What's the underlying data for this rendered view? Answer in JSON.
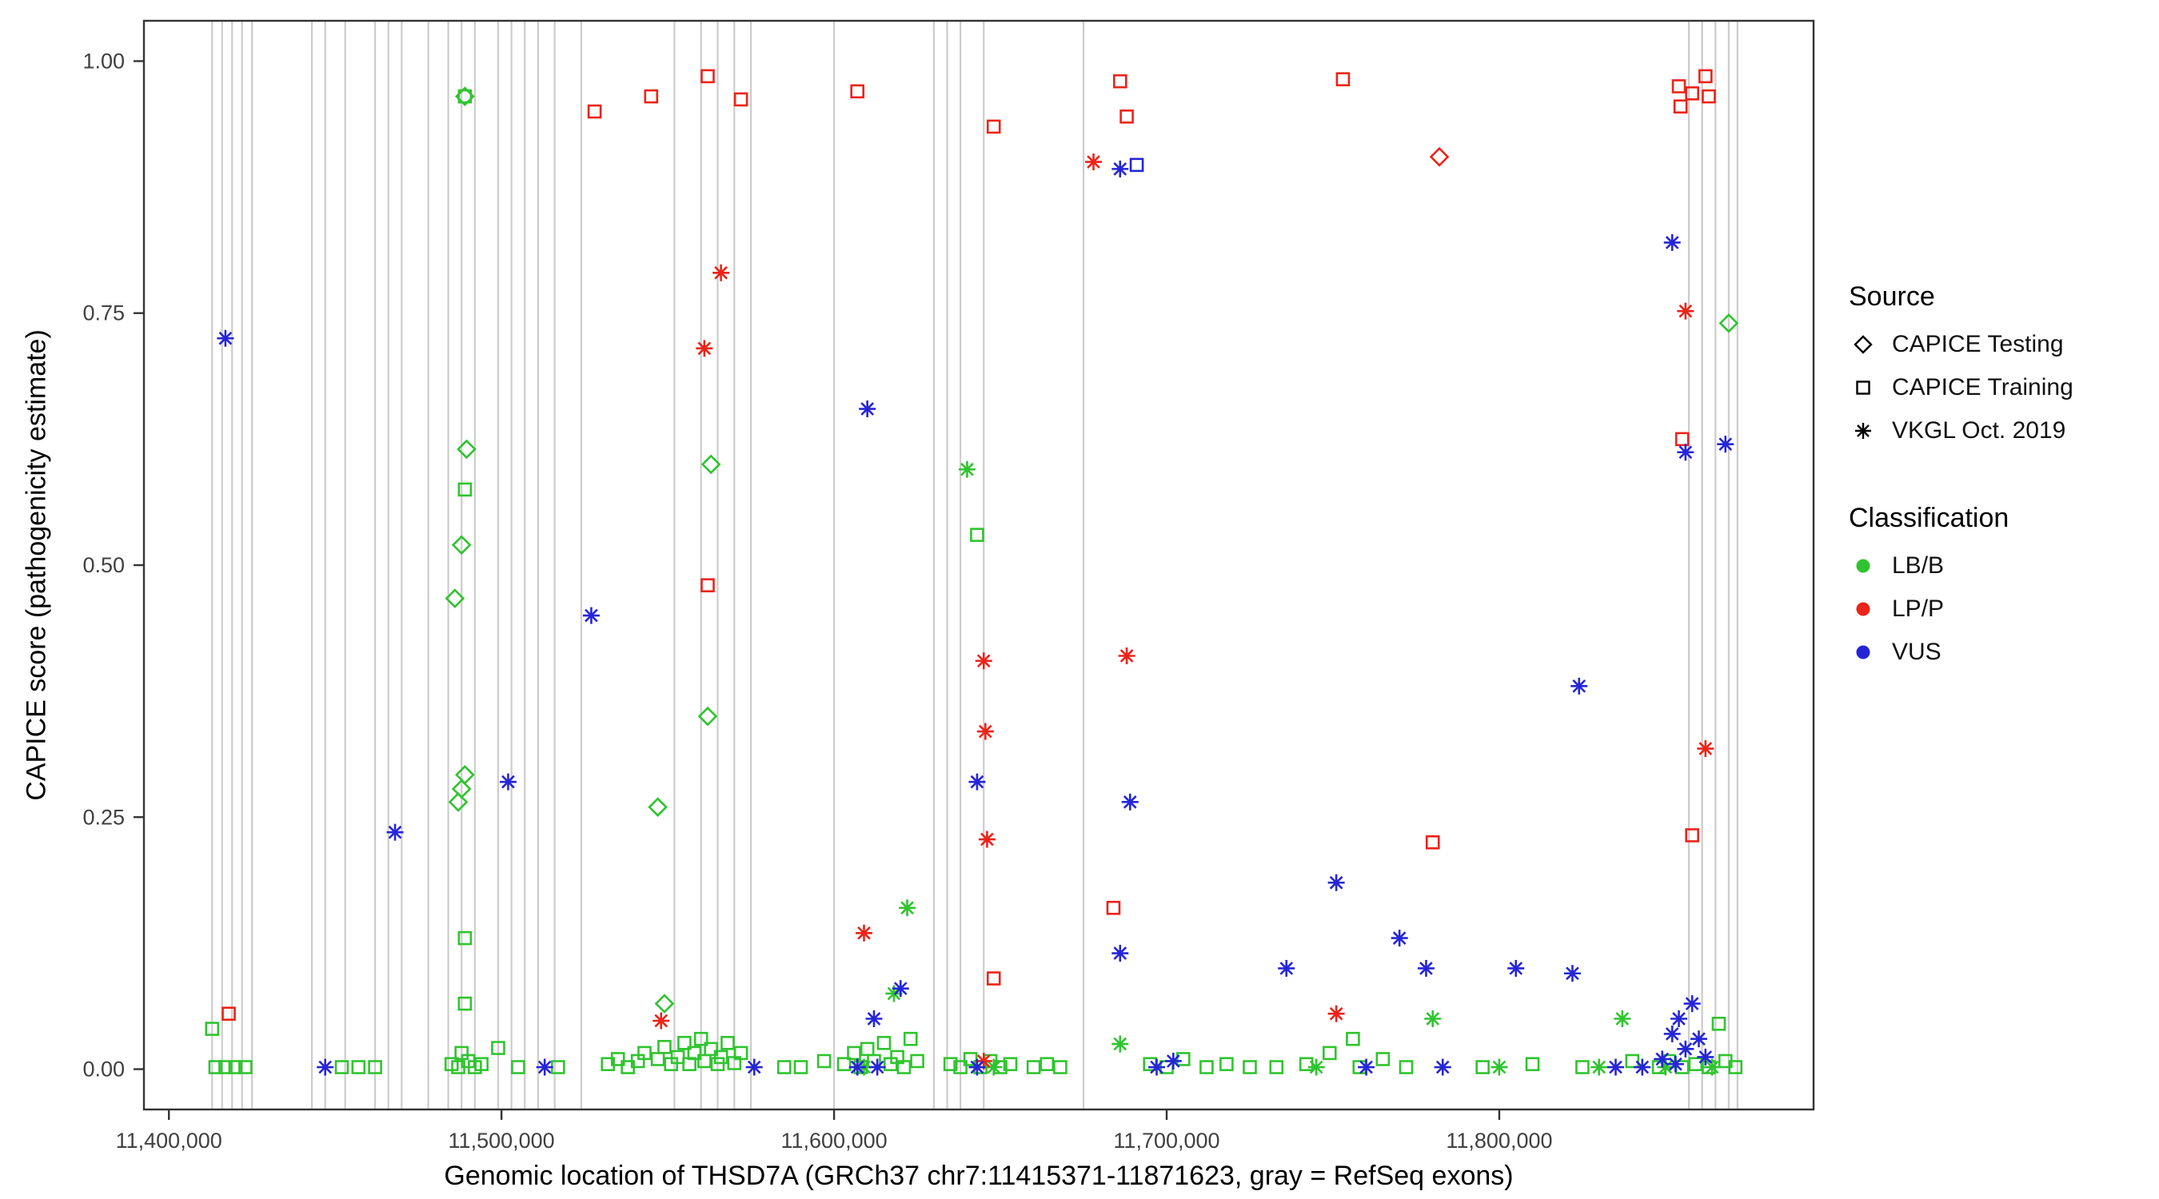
{
  "legend": {
    "source": {
      "title": "Source",
      "items": [
        {
          "label": "CAPICE Testing",
          "marker": "diamond"
        },
        {
          "label": "CAPICE Training",
          "marker": "square"
        },
        {
          "label": "VKGL Oct. 2019",
          "marker": "asterisk"
        }
      ]
    },
    "classification": {
      "title": "Classification",
      "items": [
        {
          "label": "LB/B",
          "color": "#2fc42f"
        },
        {
          "label": "LP/P",
          "color": "#ec2318"
        },
        {
          "label": "VUS",
          "color": "#2525d8"
        }
      ]
    }
  },
  "chart_data": {
    "type": "scatter",
    "title": "",
    "xlabel": "Genomic location of THSD7A (GRCh37 chr7:11415371-11871623, gray = RefSeq exons)",
    "ylabel": "CAPICE score (pathogenicity estimate)",
    "xlim": [
      11392500,
      11894500
    ],
    "ylim": [
      -0.04,
      1.04
    ],
    "x_ticks": [
      {
        "value": 11400000,
        "label": "11,400,000"
      },
      {
        "value": 11500000,
        "label": "11,500,000"
      },
      {
        "value": 11600000,
        "label": "11,600,000"
      },
      {
        "value": 11700000,
        "label": "11,700,000"
      },
      {
        "value": 11800000,
        "label": "11,800,000"
      }
    ],
    "y_ticks": [
      {
        "value": 0.0,
        "label": "0.00"
      },
      {
        "value": 0.25,
        "label": "0.25"
      },
      {
        "value": 0.5,
        "label": "0.50"
      },
      {
        "value": 0.75,
        "label": "0.75"
      },
      {
        "value": 1.0,
        "label": "1.00"
      }
    ],
    "exon_color": "#cccccc",
    "exon_positions": [
      11413000,
      11416000,
      11419000,
      11422000,
      11425000,
      11443000,
      11447000,
      11453000,
      11462000,
      11466000,
      11470000,
      11478000,
      11484000,
      11488000,
      11492000,
      11499000,
      11503000,
      11507000,
      11511000,
      11516000,
      11524000,
      11552000,
      11560000,
      11565000,
      11570000,
      11575000,
      11600000,
      11630000,
      11634000,
      11638000,
      11645000,
      11675000,
      11857000,
      11861000,
      11865000,
      11869000,
      11871623
    ],
    "series": [
      {
        "name": "CAPICE Testing · LB/B",
        "source": "CAPICE Testing",
        "classification": "LB/B",
        "marker": "diamond",
        "color": "#2fc42f",
        "points": [
          [
            11489000,
            0.965
          ],
          [
            11489500,
            0.615
          ],
          [
            11488000,
            0.52
          ],
          [
            11486000,
            0.467
          ],
          [
            11489000,
            0.292
          ],
          [
            11488000,
            0.278
          ],
          [
            11487000,
            0.265
          ],
          [
            11547000,
            0.26
          ],
          [
            11549000,
            0.065
          ],
          [
            11563000,
            0.6
          ],
          [
            11562000,
            0.35
          ],
          [
            11869000,
            0.74
          ]
        ]
      },
      {
        "name": "CAPICE Testing · LP/P",
        "source": "CAPICE Testing",
        "classification": "LP/P",
        "marker": "diamond",
        "color": "#ec2318",
        "points": [
          [
            11782000,
            0.905
          ]
        ]
      },
      {
        "name": "CAPICE Training · LB/B",
        "source": "CAPICE Training",
        "classification": "LB/B",
        "marker": "square",
        "color": "#2fc42f",
        "points": [
          [
            11489000,
            0.965
          ],
          [
            11489000,
            0.575
          ],
          [
            11489000,
            0.13
          ],
          [
            11489000,
            0.065
          ],
          [
            11643000,
            0.53
          ],
          [
            11413000,
            0.04
          ],
          [
            11414000,
            0.002
          ],
          [
            11417000,
            0.002
          ],
          [
            11420000,
            0.002
          ],
          [
            11423000,
            0.002
          ],
          [
            11452000,
            0.002
          ],
          [
            11457000,
            0.002
          ],
          [
            11462000,
            0.002
          ],
          [
            11485000,
            0.005
          ],
          [
            11487000,
            0.002
          ],
          [
            11490000,
            0.008
          ],
          [
            11492000,
            0.002
          ],
          [
            11494000,
            0.005
          ],
          [
            11488000,
            0.016
          ],
          [
            11499000,
            0.021
          ],
          [
            11505000,
            0.002
          ],
          [
            11517000,
            0.002
          ],
          [
            11532000,
            0.005
          ],
          [
            11535000,
            0.01
          ],
          [
            11538000,
            0.002
          ],
          [
            11541000,
            0.008
          ],
          [
            11543000,
            0.016
          ],
          [
            11547000,
            0.01
          ],
          [
            11549000,
            0.022
          ],
          [
            11551000,
            0.005
          ],
          [
            11553000,
            0.012
          ],
          [
            11555000,
            0.026
          ],
          [
            11556500,
            0.005
          ],
          [
            11558000,
            0.016
          ],
          [
            11560000,
            0.03
          ],
          [
            11561000,
            0.008
          ],
          [
            11563000,
            0.02
          ],
          [
            11565000,
            0.005
          ],
          [
            11566000,
            0.012
          ],
          [
            11568000,
            0.026
          ],
          [
            11570000,
            0.006
          ],
          [
            11572000,
            0.016
          ],
          [
            11585000,
            0.002
          ],
          [
            11590000,
            0.002
          ],
          [
            11597000,
            0.008
          ],
          [
            11603000,
            0.005
          ],
          [
            11606000,
            0.016
          ],
          [
            11608000,
            0.002
          ],
          [
            11610000,
            0.02
          ],
          [
            11612000,
            0.008
          ],
          [
            11615000,
            0.026
          ],
          [
            11617000,
            0.005
          ],
          [
            11619000,
            0.012
          ],
          [
            11621000,
            0.002
          ],
          [
            11623000,
            0.03
          ],
          [
            11625000,
            0.008
          ],
          [
            11635000,
            0.005
          ],
          [
            11638000,
            0.002
          ],
          [
            11641000,
            0.01
          ],
          [
            11644000,
            0.002
          ],
          [
            11647000,
            0.008
          ],
          [
            11650000,
            0.002
          ],
          [
            11653000,
            0.005
          ],
          [
            11660000,
            0.002
          ],
          [
            11664000,
            0.005
          ],
          [
            11668000,
            0.002
          ],
          [
            11695000,
            0.005
          ],
          [
            11700000,
            0.002
          ],
          [
            11705000,
            0.01
          ],
          [
            11712000,
            0.002
          ],
          [
            11718000,
            0.005
          ],
          [
            11725000,
            0.002
          ],
          [
            11733000,
            0.002
          ],
          [
            11742000,
            0.005
          ],
          [
            11749000,
            0.016
          ],
          [
            11756000,
            0.03
          ],
          [
            11758000,
            0.002
          ],
          [
            11765000,
            0.01
          ],
          [
            11772000,
            0.002
          ],
          [
            11795000,
            0.002
          ],
          [
            11810000,
            0.005
          ],
          [
            11825000,
            0.002
          ],
          [
            11840000,
            0.008
          ],
          [
            11848000,
            0.002
          ],
          [
            11851000,
            0.008
          ],
          [
            11855000,
            0.002
          ],
          [
            11859000,
            0.005
          ],
          [
            11863000,
            0.002
          ],
          [
            11866000,
            0.045
          ],
          [
            11868000,
            0.008
          ],
          [
            11871000,
            0.002
          ]
        ]
      },
      {
        "name": "CAPICE Training · LP/P",
        "source": "CAPICE Training",
        "classification": "LP/P",
        "marker": "square",
        "color": "#ec2318",
        "points": [
          [
            11418000,
            0.055
          ],
          [
            11528000,
            0.95
          ],
          [
            11545000,
            0.965
          ],
          [
            11562000,
            0.985
          ],
          [
            11572000,
            0.962
          ],
          [
            11562000,
            0.48
          ],
          [
            11607000,
            0.97
          ],
          [
            11648000,
            0.935
          ],
          [
            11648000,
            0.09
          ],
          [
            11686000,
            0.98
          ],
          [
            11688000,
            0.945
          ],
          [
            11684000,
            0.16
          ],
          [
            11753000,
            0.982
          ],
          [
            11780000,
            0.225
          ],
          [
            11854000,
            0.975
          ],
          [
            11854500,
            0.955
          ],
          [
            11858000,
            0.968
          ],
          [
            11862000,
            0.985
          ],
          [
            11863000,
            0.965
          ],
          [
            11855000,
            0.625
          ],
          [
            11858000,
            0.232
          ]
        ]
      },
      {
        "name": "CAPICE Training · VUS",
        "source": "CAPICE Training",
        "classification": "VUS",
        "marker": "square",
        "color": "#2525d8",
        "points": [
          [
            11691000,
            0.897
          ]
        ]
      },
      {
        "name": "VKGL Oct. 2019 · LB/B",
        "source": "VKGL Oct. 2019",
        "classification": "LB/B",
        "marker": "asterisk",
        "color": "#2fc42f",
        "points": [
          [
            11640000,
            0.595
          ],
          [
            11622000,
            0.16
          ],
          [
            11618000,
            0.075
          ],
          [
            11686000,
            0.025
          ],
          [
            11780000,
            0.05
          ],
          [
            11837000,
            0.05
          ],
          [
            11609000,
            0.002
          ],
          [
            11648000,
            0.002
          ],
          [
            11745000,
            0.002
          ],
          [
            11800000,
            0.002
          ],
          [
            11830000,
            0.002
          ],
          [
            11850000,
            0.002
          ],
          [
            11864000,
            0.002
          ]
        ]
      },
      {
        "name": "VKGL Oct. 2019 · LP/P",
        "source": "VKGL Oct. 2019",
        "classification": "LP/P",
        "marker": "asterisk",
        "color": "#ec2318",
        "points": [
          [
            11566000,
            0.79
          ],
          [
            11561000,
            0.715
          ],
          [
            11678000,
            0.9
          ],
          [
            11688000,
            0.41
          ],
          [
            11645000,
            0.405
          ],
          [
            11645500,
            0.335
          ],
          [
            11646000,
            0.228
          ],
          [
            11609000,
            0.135
          ],
          [
            11751000,
            0.055
          ],
          [
            11548000,
            0.048
          ],
          [
            11856000,
            0.752
          ],
          [
            11862000,
            0.318
          ],
          [
            11645000,
            0.008
          ]
        ]
      },
      {
        "name": "VKGL Oct. 2019 · VUS",
        "source": "VKGL Oct. 2019",
        "classification": "VUS",
        "marker": "asterisk",
        "color": "#2525d8",
        "points": [
          [
            11417000,
            0.725
          ],
          [
            11468000,
            0.235
          ],
          [
            11502000,
            0.285
          ],
          [
            11527000,
            0.45
          ],
          [
            11610000,
            0.655
          ],
          [
            11686000,
            0.893
          ],
          [
            11643000,
            0.285
          ],
          [
            11620000,
            0.08
          ],
          [
            11612000,
            0.05
          ],
          [
            11686000,
            0.115
          ],
          [
            11689000,
            0.265
          ],
          [
            11736000,
            0.1
          ],
          [
            11751000,
            0.185
          ],
          [
            11770000,
            0.13
          ],
          [
            11778000,
            0.1
          ],
          [
            11805000,
            0.1
          ],
          [
            11822000,
            0.095
          ],
          [
            11824000,
            0.38
          ],
          [
            11852000,
            0.82
          ],
          [
            11856000,
            0.612
          ],
          [
            11868000,
            0.62
          ],
          [
            11447000,
            0.002
          ],
          [
            11513000,
            0.002
          ],
          [
            11576000,
            0.002
          ],
          [
            11607000,
            0.002
          ],
          [
            11613000,
            0.002
          ],
          [
            11643000,
            0.002
          ],
          [
            11697000,
            0.002
          ],
          [
            11702000,
            0.008
          ],
          [
            11760000,
            0.002
          ],
          [
            11783000,
            0.002
          ],
          [
            11835000,
            0.002
          ],
          [
            11843000,
            0.002
          ],
          [
            11849000,
            0.01
          ],
          [
            11852000,
            0.035
          ],
          [
            11854000,
            0.05
          ],
          [
            11856000,
            0.02
          ],
          [
            11858000,
            0.065
          ],
          [
            11860000,
            0.03
          ],
          [
            11853000,
            0.005
          ],
          [
            11862000,
            0.012
          ]
        ]
      }
    ]
  }
}
